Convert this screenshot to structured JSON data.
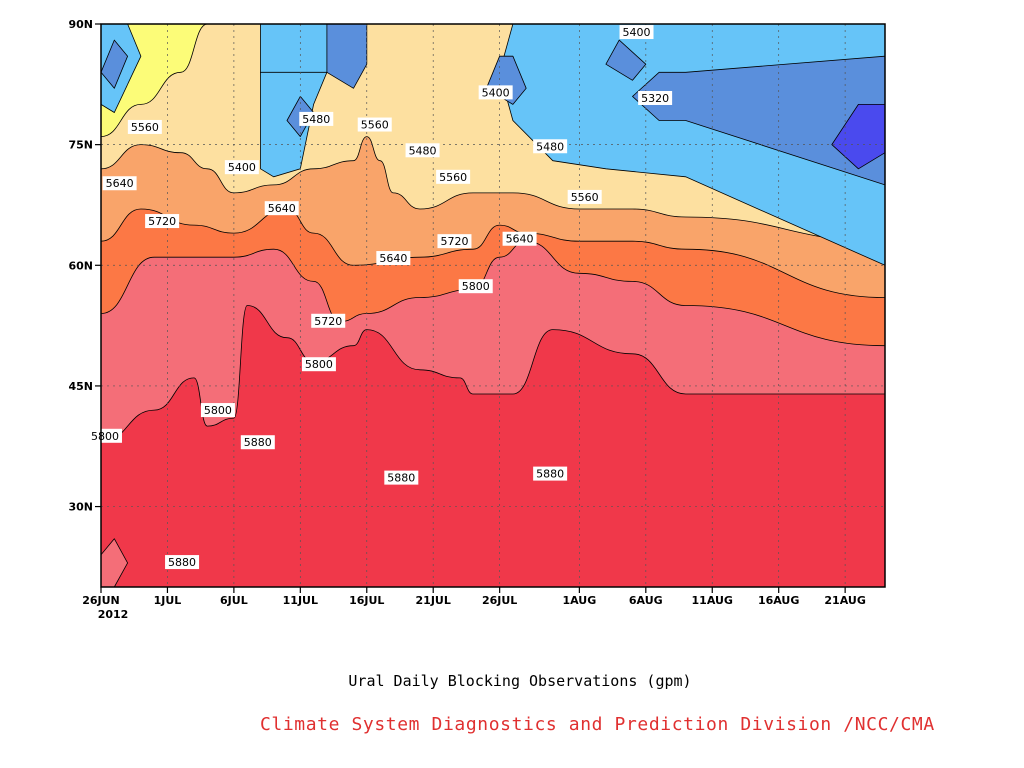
{
  "chart_data": {
    "type": "contour",
    "caption": "Ural Daily Blocking Observations (gpm)",
    "credit": "Climate System Diagnostics and Prediction Division /NCC/CMA",
    "x_ticks": [
      "26JUN",
      "1JUL",
      "6JUL",
      "11JUL",
      "16JUL",
      "21JUL",
      "26JUL",
      "1AUG",
      "6AUG",
      "11AUG",
      "16AUG",
      "21AUG"
    ],
    "x_year": "2012",
    "y_ticks": [
      "90N",
      "75N",
      "60N",
      "45N",
      "30N"
    ],
    "y_tick_values": [
      90,
      75,
      60,
      45,
      30
    ],
    "ylim": [
      20,
      90
    ],
    "grid": true,
    "contour_levels": [
      5320,
      5400,
      5480,
      5560,
      5640,
      5720,
      5800,
      5880
    ],
    "fill_colors": {
      "below_5320": "#4a4aee",
      "5320_5400": "#5a8fdc",
      "5400_5480": "#66c4f8",
      "5480_5560": "#fcfc78",
      "5560_5640": "#fde0a0",
      "5640_5720": "#f9a46a",
      "5720_5800": "#fc7845",
      "5800_5880": "#f46e78",
      "above_5880": "#f0384a"
    },
    "contour_labels": [
      {
        "text": "5560",
        "day": 3.3,
        "lat": 77.2
      },
      {
        "text": "5480",
        "day": 16.2,
        "lat": 78.2
      },
      {
        "text": "5560",
        "day": 20.6,
        "lat": 77.5
      },
      {
        "text": "5400",
        "day": 10.6,
        "lat": 72.2
      },
      {
        "text": "5400",
        "day": 40.3,
        "lat": 89.0
      },
      {
        "text": "5400",
        "day": 29.7,
        "lat": 81.5
      },
      {
        "text": "5320",
        "day": 41.7,
        "lat": 80.8
      },
      {
        "text": "5480",
        "day": 24.2,
        "lat": 74.3
      },
      {
        "text": "5480",
        "day": 33.8,
        "lat": 74.8
      },
      {
        "text": "5560",
        "day": 26.5,
        "lat": 71.0
      },
      {
        "text": "5560",
        "day": 36.4,
        "lat": 68.5
      },
      {
        "text": "5640",
        "day": 1.4,
        "lat": 70.2
      },
      {
        "text": "5640",
        "day": 13.6,
        "lat": 67.1
      },
      {
        "text": "5640",
        "day": 22.0,
        "lat": 60.9
      },
      {
        "text": "5640",
        "day": 31.5,
        "lat": 63.3
      },
      {
        "text": "5720",
        "day": 4.6,
        "lat": 65.5
      },
      {
        "text": "5720",
        "day": 26.6,
        "lat": 63.0
      },
      {
        "text": "5720",
        "day": 17.1,
        "lat": 53.1
      },
      {
        "text": "5800",
        "day": 28.2,
        "lat": 57.4
      },
      {
        "text": "5800",
        "day": 16.4,
        "lat": 47.7
      },
      {
        "text": "5800",
        "day": 8.8,
        "lat": 42.0
      },
      {
        "text": "5800",
        "day": 0.3,
        "lat": 38.8
      },
      {
        "text": "5880",
        "day": 11.8,
        "lat": 38.0
      },
      {
        "text": "5880",
        "day": 22.6,
        "lat": 33.6
      },
      {
        "text": "5880",
        "day": 33.8,
        "lat": 34.1
      },
      {
        "text": "5880",
        "day": 6.1,
        "lat": 23.1
      }
    ],
    "bands": [
      {
        "fill": "#f0384a",
        "top": [
          [
            0,
            20
          ],
          [
            59,
            20
          ]
        ]
      },
      {
        "fill": "#f46e78",
        "top": [
          [
            0,
            38
          ],
          [
            4,
            42
          ],
          [
            7,
            46
          ],
          [
            8,
            40
          ],
          [
            10,
            41
          ],
          [
            11,
            55
          ],
          [
            14,
            51
          ],
          [
            16,
            48
          ],
          [
            19,
            50
          ],
          [
            20,
            52
          ],
          [
            24,
            47
          ],
          [
            27,
            46
          ],
          [
            28,
            44
          ],
          [
            31,
            44
          ],
          [
            34,
            52
          ],
          [
            40,
            49
          ],
          [
            44,
            44
          ],
          [
            59,
            44
          ]
        ]
      },
      {
        "fill": "#fc7845",
        "top": [
          [
            0,
            54
          ],
          [
            4,
            61
          ],
          [
            7,
            61
          ],
          [
            10,
            61
          ],
          [
            13,
            62
          ],
          [
            16,
            58
          ],
          [
            18,
            53
          ],
          [
            20,
            54
          ],
          [
            24,
            56
          ],
          [
            28,
            57
          ],
          [
            30,
            61
          ],
          [
            32,
            63
          ],
          [
            36,
            59
          ],
          [
            40,
            58
          ],
          [
            44,
            55
          ],
          [
            59,
            50
          ]
        ]
      },
      {
        "fill": "#f9a46a",
        "top": [
          [
            0,
            63
          ],
          [
            3,
            67
          ],
          [
            7,
            65
          ],
          [
            10,
            64
          ],
          [
            14,
            67
          ],
          [
            16,
            64
          ],
          [
            19,
            60
          ],
          [
            24,
            61
          ],
          [
            28,
            62
          ],
          [
            30,
            65
          ],
          [
            32,
            64
          ],
          [
            36,
            63
          ],
          [
            40,
            63
          ],
          [
            44,
            62
          ],
          [
            59,
            56
          ]
        ]
      },
      {
        "fill": "#fde0a0",
        "top": [
          [
            0,
            72
          ],
          [
            3,
            75
          ],
          [
            6,
            74
          ],
          [
            8,
            72
          ],
          [
            10,
            69
          ],
          [
            13,
            70
          ],
          [
            16,
            72
          ],
          [
            19,
            73
          ],
          [
            20,
            76
          ],
          [
            21,
            73
          ],
          [
            22,
            69
          ],
          [
            24,
            67
          ],
          [
            28,
            69
          ],
          [
            31,
            69
          ],
          [
            36,
            67
          ],
          [
            40,
            67
          ],
          [
            44,
            66
          ],
          [
            59,
            63
          ]
        ]
      },
      {
        "fill": "#fcfc78",
        "top": [
          [
            0,
            76
          ],
          [
            3,
            80
          ],
          [
            6,
            84
          ],
          [
            8,
            90
          ],
          [
            59,
            90
          ]
        ]
      },
      {
        "fill": "#66c4f8",
        "top": [
          [
            0,
            90
          ],
          [
            2,
            90
          ],
          [
            3,
            86
          ],
          [
            1,
            79
          ],
          [
            0,
            80
          ]
        ]
      },
      {
        "fill": "#66c4f8",
        "top": [
          [
            12,
            84
          ],
          [
            13,
            80
          ],
          [
            15,
            80
          ],
          [
            17,
            84
          ],
          [
            19,
            90
          ],
          [
            12,
            90
          ]
        ]
      },
      {
        "fill": "#66c4f8",
        "top": [
          [
            31,
            90
          ],
          [
            30,
            84
          ],
          [
            31,
            78
          ],
          [
            34,
            73
          ],
          [
            38,
            72
          ],
          [
            44,
            71
          ],
          [
            59,
            60
          ],
          [
            59,
            90
          ]
        ]
      },
      {
        "fill": "#66c4f8",
        "top": [
          [
            12,
            84
          ],
          [
            12,
            79
          ],
          [
            12,
            72
          ],
          [
            13,
            71
          ],
          [
            15,
            72
          ],
          [
            16,
            80
          ],
          [
            17,
            84
          ]
        ]
      }
    ],
    "dark_patches": [
      {
        "fill": "#5a8fdc",
        "pts": [
          [
            0,
            84
          ],
          [
            1,
            88
          ],
          [
            2,
            86
          ],
          [
            1,
            82
          ]
        ]
      },
      {
        "fill": "#5a8fdc",
        "pts": [
          [
            14,
            78
          ],
          [
            15,
            76
          ],
          [
            16,
            79
          ],
          [
            15,
            81
          ]
        ]
      },
      {
        "fill": "#5a8fdc",
        "pts": [
          [
            17,
            90
          ],
          [
            17,
            84
          ],
          [
            19,
            82
          ],
          [
            20,
            85
          ],
          [
            20,
            90
          ]
        ]
      },
      {
        "fill": "#5a8fdc",
        "pts": [
          [
            38,
            85
          ],
          [
            40,
            83
          ],
          [
            41,
            85
          ],
          [
            39,
            88
          ]
        ]
      },
      {
        "fill": "#5a8fdc",
        "pts": [
          [
            29,
            82
          ],
          [
            31,
            80
          ],
          [
            32,
            82
          ],
          [
            31,
            86
          ],
          [
            30,
            86
          ]
        ]
      },
      {
        "fill": "#5a8fdc",
        "pts": [
          [
            40,
            81
          ],
          [
            42,
            78
          ],
          [
            44,
            78
          ],
          [
            59,
            70
          ],
          [
            59,
            86
          ],
          [
            44,
            84
          ],
          [
            42,
            84
          ]
        ]
      },
      {
        "fill": "#4a4aee",
        "pts": [
          [
            55,
            75
          ],
          [
            57,
            72
          ],
          [
            59,
            74
          ],
          [
            59,
            80
          ],
          [
            57,
            80
          ]
        ]
      },
      {
        "fill": "#f46e78",
        "pts": [
          [
            0,
            20
          ],
          [
            1,
            20
          ],
          [
            2,
            23
          ],
          [
            1,
            26
          ],
          [
            0,
            24
          ]
        ]
      }
    ]
  }
}
